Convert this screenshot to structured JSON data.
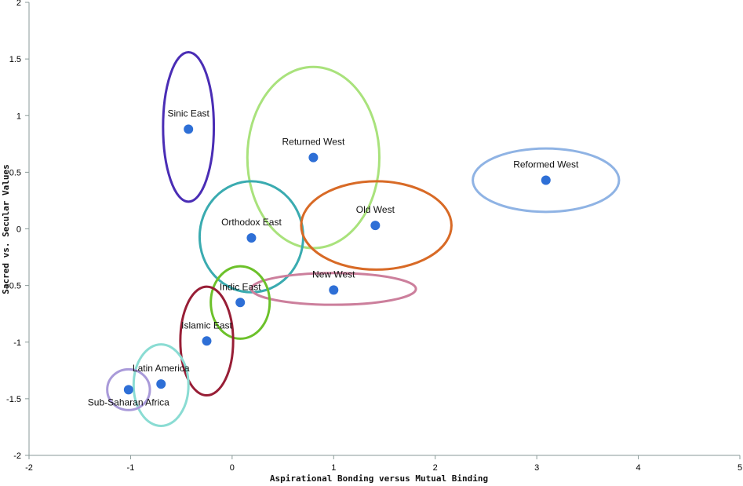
{
  "chart_data": {
    "type": "scatter",
    "title": "",
    "xlabel": "Aspirational Bonding versus Mutual Binding",
    "ylabel": "Sacred vs. Secular Values",
    "xlim": [
      -2,
      5
    ],
    "ylim": [
      -2,
      2
    ],
    "xticks": [
      "-2",
      "-1",
      "0",
      "1",
      "2",
      "3",
      "4",
      "5"
    ],
    "yticks": [
      "2",
      "1.5",
      "1",
      "0.5",
      "0",
      "-0.5",
      "-1",
      "-1.5",
      "-2"
    ],
    "grid": false,
    "point_color": "#2e6fd6",
    "points": [
      {
        "label": "Sinic East",
        "x": -0.43,
        "y": 0.88,
        "label_side": "above",
        "ellipse": {
          "cx": -0.43,
          "cy": 0.9,
          "rx": 0.25,
          "ry": 0.66,
          "color": "#4a2db5"
        }
      },
      {
        "label": "Returned West",
        "x": 0.8,
        "y": 0.63,
        "label_side": "above",
        "ellipse": {
          "cx": 0.8,
          "cy": 0.63,
          "rx": 0.65,
          "ry": 0.8,
          "color": "#a9e27c"
        }
      },
      {
        "label": "Reformed West",
        "x": 3.09,
        "y": 0.43,
        "label_side": "above",
        "ellipse": {
          "cx": 3.09,
          "cy": 0.43,
          "rx": 0.72,
          "ry": 0.28,
          "color": "#8fb3e4"
        }
      },
      {
        "label": "Orthodox East",
        "x": 0.19,
        "y": -0.08,
        "label_side": "above",
        "ellipse": {
          "cx": 0.19,
          "cy": -0.07,
          "rx": 0.51,
          "ry": 0.49,
          "color": "#3aabb0"
        }
      },
      {
        "label": "Old West",
        "x": 1.41,
        "y": 0.03,
        "label_side": "above",
        "ellipse": {
          "cx": 1.42,
          "cy": 0.03,
          "rx": 0.74,
          "ry": 0.39,
          "color": "#d86a26"
        }
      },
      {
        "label": "New West",
        "x": 1.0,
        "y": -0.54,
        "label_side": "above",
        "ellipse": {
          "cx": 1.0,
          "cy": -0.53,
          "rx": 0.81,
          "ry": 0.14,
          "color": "#cc7f9c"
        }
      },
      {
        "label": "Indic East",
        "x": 0.08,
        "y": -0.65,
        "label_side": "above",
        "ellipse": {
          "cx": 0.08,
          "cy": -0.65,
          "rx": 0.29,
          "ry": 0.32,
          "color": "#6cc12a"
        }
      },
      {
        "label": "Islamic East",
        "x": -0.25,
        "y": -0.99,
        "label_side": "above",
        "ellipse": {
          "cx": -0.25,
          "cy": -0.99,
          "rx": 0.26,
          "ry": 0.48,
          "color": "#981e36"
        }
      },
      {
        "label": "Latin America",
        "x": -0.7,
        "y": -1.37,
        "label_side": "above",
        "ellipse": {
          "cx": -0.7,
          "cy": -1.38,
          "rx": 0.27,
          "ry": 0.36,
          "color": "#8adcd3"
        }
      },
      {
        "label": "Sub-Saharan Africa",
        "x": -1.02,
        "y": -1.42,
        "label_side": "below",
        "ellipse": {
          "cx": -1.02,
          "cy": -1.42,
          "rx": 0.21,
          "ry": 0.18,
          "color": "#a99ad9"
        }
      }
    ]
  }
}
